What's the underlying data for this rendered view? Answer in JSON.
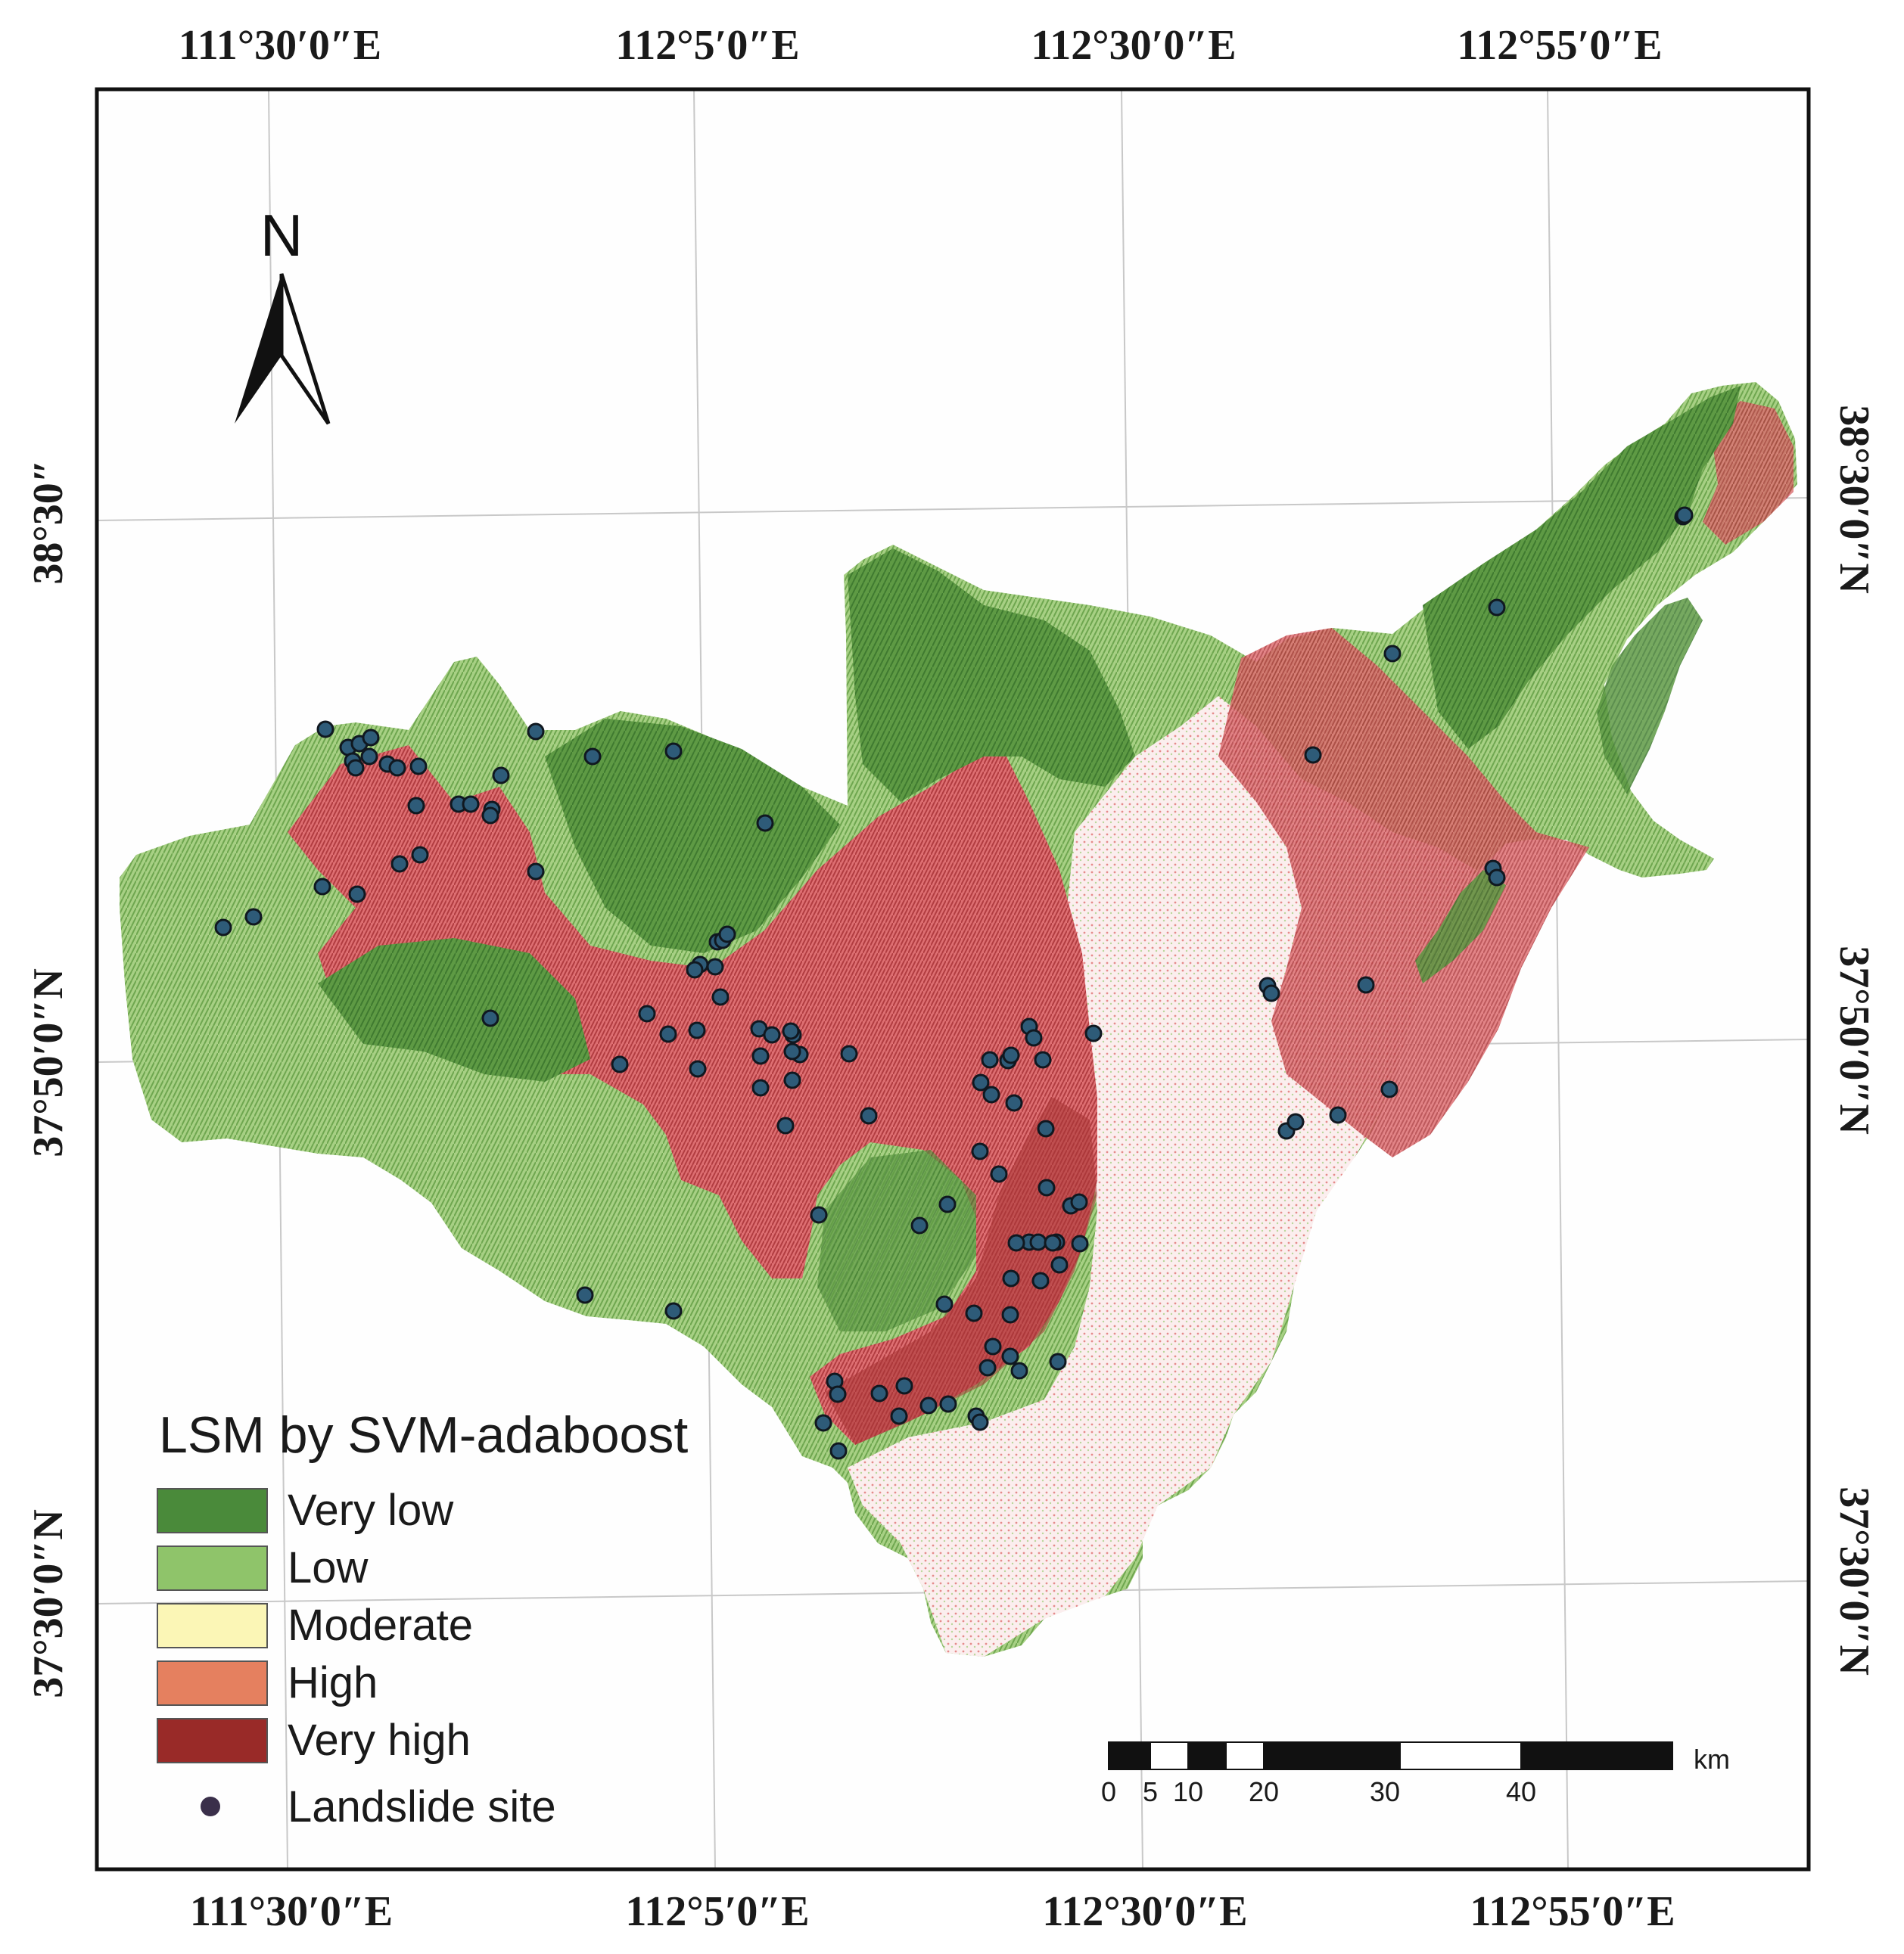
{
  "legend": {
    "title": "LSM by SVM-adaboost",
    "classes": [
      {
        "label": "Very low",
        "color": "#4a8a3a"
      },
      {
        "label": "Low",
        "color": "#8fc46a"
      },
      {
        "label": "Moderate",
        "color": "#fbf6b6"
      },
      {
        "label": "High",
        "color": "#e5805f"
      },
      {
        "label": "Very high",
        "color": "#992a28"
      }
    ],
    "site_label": "Landslide site",
    "site_color": "#3a2f4a"
  },
  "north_arrow": {
    "label": "N"
  },
  "graticule": {
    "top_lon": [
      "111°30′0″E",
      "112°5′0″E",
      "112°30′0″E",
      "112°55′0″E"
    ],
    "bottom_lon": [
      "111°30′0″E",
      "112°5′0″E",
      "112°30′0″E",
      "112°55′0″E"
    ],
    "left_lat": [
      "38°30″",
      "37°50′0″N",
      "37°30′0″N"
    ],
    "right_lat": [
      "38°30′0″N",
      "37°50′0″N",
      "37°30′0″N"
    ]
  },
  "scale_bar": {
    "unit": "km",
    "ticks": [
      "0",
      "5",
      "10",
      "20",
      "30",
      "40"
    ]
  },
  "colors": {
    "study_area_green": "#6fa84f",
    "study_area_red": "#d85a5f",
    "study_area_pale": "#f6d9d6",
    "dot_fill": "#2e5b78"
  }
}
